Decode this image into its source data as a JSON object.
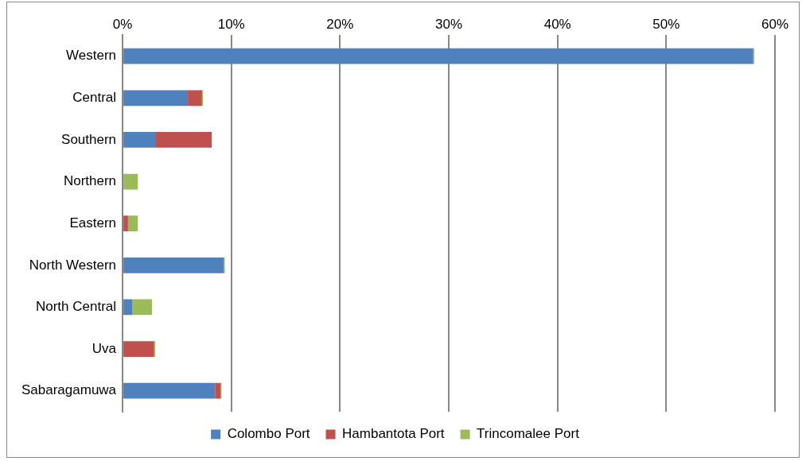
{
  "chart_data": {
    "type": "bar",
    "orientation": "horizontal",
    "stacked": true,
    "categories": [
      "Western",
      "Central",
      "Southern",
      "Northern",
      "Eastern",
      "North Western",
      "North Central",
      "Uva",
      "Sabaragamuwa"
    ],
    "series": [
      {
        "name": "Colombo Port",
        "color": "#4f81bd",
        "values": [
          58.0,
          6.0,
          3.0,
          0,
          0,
          9.3,
          0.9,
          0,
          8.5
        ]
      },
      {
        "name": "Hambantota Port",
        "color": "#c0504d",
        "values": [
          0,
          1.3,
          5.2,
          0,
          0.5,
          0,
          0,
          2.9,
          0.5
        ]
      },
      {
        "name": "Trincomalee Port",
        "color": "#9bbb59",
        "values": [
          0.1,
          0.1,
          0,
          1.4,
          0.9,
          0.1,
          1.8,
          0.1,
          0.1
        ]
      }
    ],
    "xlim": [
      0,
      60
    ],
    "xticks": [
      {
        "value": 0,
        "label": "0%"
      },
      {
        "value": 10,
        "label": "10%"
      },
      {
        "value": 20,
        "label": "20%"
      },
      {
        "value": 30,
        "label": "30%"
      },
      {
        "value": 40,
        "label": "40%"
      },
      {
        "value": 50,
        "label": "50%"
      },
      {
        "value": 60,
        "label": "60%"
      }
    ],
    "grid": "x",
    "legend": "bottom"
  }
}
